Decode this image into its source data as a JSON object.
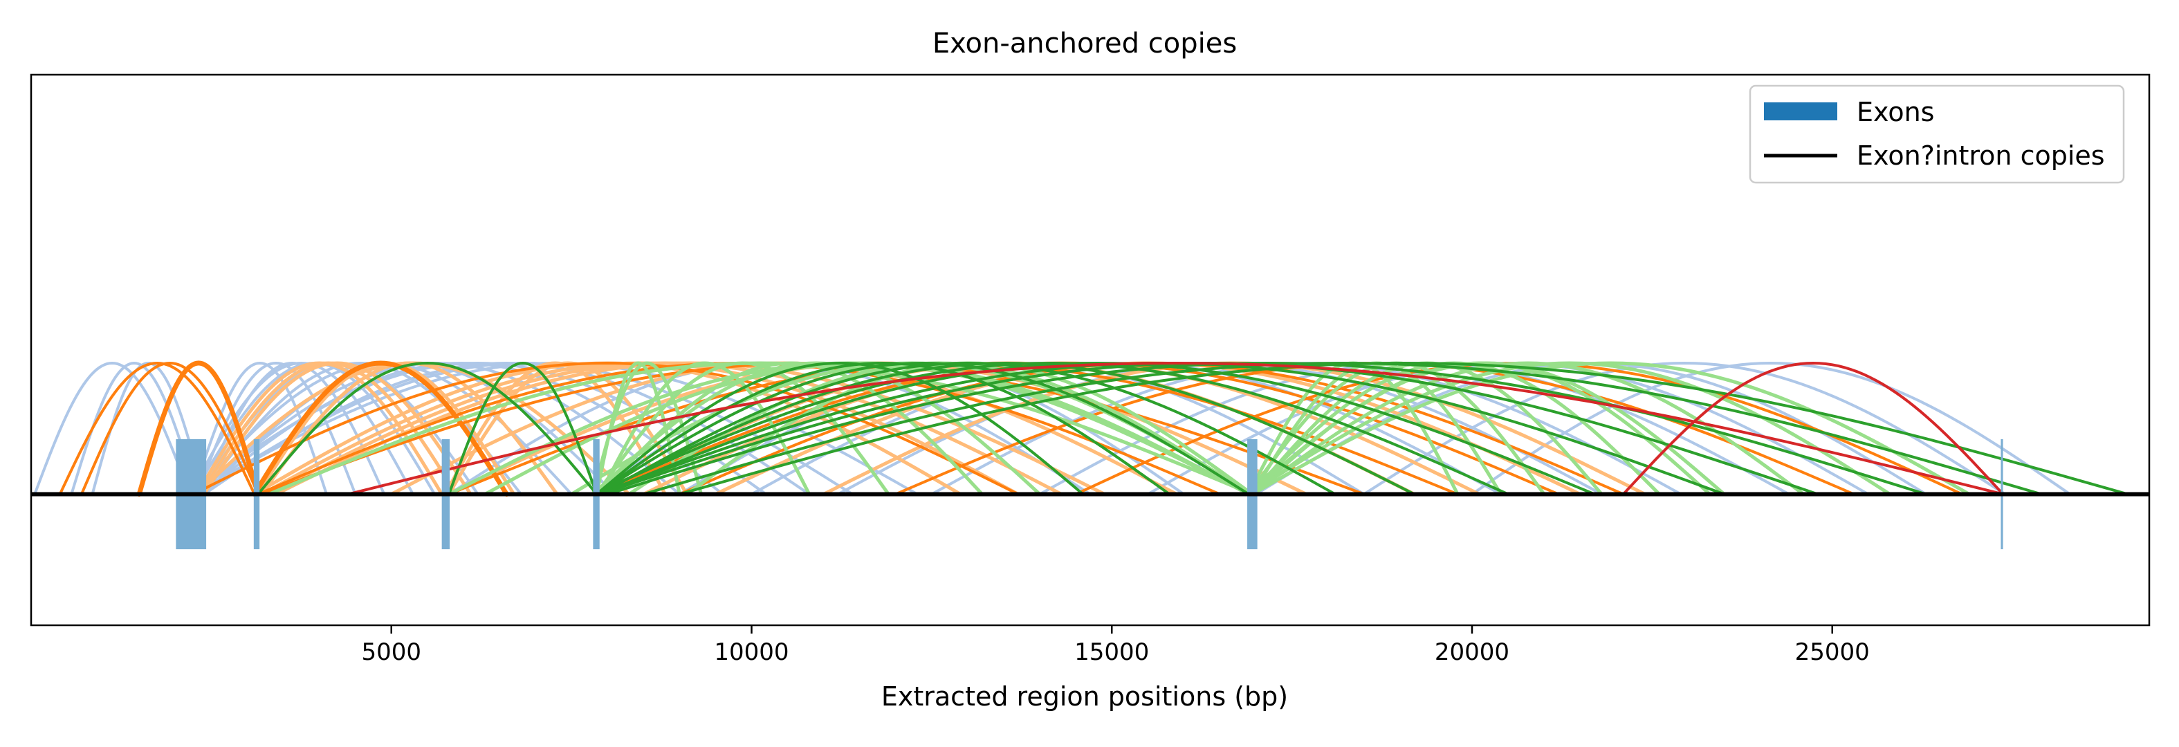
{
  "chart_data": {
    "type": "line",
    "title": "Exon-anchored copies",
    "xlabel": "Extracted region positions (bp)",
    "ylabel": "",
    "xlim": [
      0,
      29400
    ],
    "ylim": [
      -1.0,
      3.2
    ],
    "xticks": [
      5000,
      10000,
      15000,
      20000,
      25000
    ],
    "xtick_labels": [
      "5000",
      "10000",
      "15000",
      "20000",
      "25000"
    ],
    "yticks_visible": false,
    "grid": false,
    "legend_position": "top-right",
    "legend": [
      {
        "label": "Exons",
        "marker": "bar",
        "color": "#1f77b4"
      },
      {
        "label": "Exon?intron copies",
        "marker": "line",
        "color": "#000000"
      }
    ],
    "baseline": {
      "y": 0,
      "color": "#000000"
    },
    "exons": [
      {
        "start": 2010,
        "end": 2430,
        "height": 0.42,
        "depth": 0.42
      },
      {
        "start": 3090,
        "end": 3170,
        "height": 0.42,
        "depth": 0.42
      },
      {
        "start": 5700,
        "end": 5810,
        "height": 0.42,
        "depth": 0.42
      },
      {
        "start": 7800,
        "end": 7890,
        "height": 0.42,
        "depth": 0.42
      },
      {
        "start": 16880,
        "end": 17020,
        "height": 0.42,
        "depth": 0.42
      },
      {
        "start": 27340,
        "end": 27370,
        "height": 0.42,
        "depth": 0.42
      }
    ],
    "exon_color": "#7aaed3",
    "arc_peak": 1.0,
    "series": [
      {
        "color": "#aec7e8",
        "width": 4,
        "arcs": [
          [
            50,
            2200
          ],
          [
            560,
            2300
          ],
          [
            850,
            2400
          ],
          [
            2250,
            4100
          ],
          [
            2300,
            4500
          ],
          [
            2350,
            4900
          ],
          [
            2200,
            5300
          ],
          [
            2250,
            5600
          ],
          [
            2300,
            6200
          ],
          [
            2350,
            6800
          ],
          [
            2250,
            7500
          ],
          [
            2400,
            8100
          ],
          [
            2300,
            9000
          ],
          [
            2350,
            9600
          ],
          [
            2200,
            10200
          ],
          [
            2400,
            10800
          ],
          [
            2300,
            11400
          ],
          [
            2250,
            12300
          ],
          [
            5800,
            14700
          ],
          [
            7800,
            16000
          ],
          [
            9000,
            18500
          ],
          [
            10000,
            20400
          ],
          [
            11200,
            21800
          ],
          [
            12500,
            22900
          ],
          [
            14000,
            24400
          ],
          [
            15500,
            25500
          ],
          [
            17000,
            26300
          ],
          [
            18500,
            27400
          ],
          [
            20000,
            28300
          ]
        ]
      },
      {
        "color": "#ffbb78",
        "width": 5,
        "arcs": [
          [
            2300,
            5700
          ],
          [
            2350,
            5900
          ],
          [
            2400,
            6100
          ],
          [
            3150,
            6700
          ],
          [
            3200,
            7300
          ],
          [
            5750,
            8800
          ],
          [
            5800,
            9100
          ],
          [
            2300,
            8300
          ],
          [
            3100,
            12900
          ],
          [
            3200,
            13700
          ],
          [
            3300,
            14300
          ],
          [
            3400,
            14900
          ],
          [
            5000,
            15900
          ],
          [
            5800,
            17700
          ],
          [
            7900,
            19200
          ],
          [
            8500,
            20100
          ],
          [
            9500,
            21500
          ],
          [
            11000,
            22400
          ]
        ]
      },
      {
        "color": "#ff7f0e",
        "width": 4,
        "arcs": [
          [
            400,
            3100
          ],
          [
            700,
            3150
          ],
          [
            2250,
            13700
          ],
          [
            3150,
            16500
          ],
          [
            3200,
            18500
          ],
          [
            5800,
            19800
          ],
          [
            7850,
            21200
          ],
          [
            9000,
            22100
          ],
          [
            12000,
            25300
          ],
          [
            14500,
            26800
          ]
        ]
      },
      {
        "color": "#ff7f0e",
        "width": 7,
        "arcs": [
          [
            1500,
            3150
          ],
          [
            3100,
            6600
          ]
        ]
      },
      {
        "color": "#98df8a",
        "width": 5,
        "arcs": [
          [
            7850,
            9000
          ],
          [
            7800,
            9300
          ],
          [
            7900,
            10800
          ],
          [
            7850,
            11900
          ],
          [
            7900,
            13200
          ],
          [
            7800,
            14000
          ],
          [
            16900,
            19800
          ],
          [
            16950,
            20400
          ],
          [
            16900,
            21000
          ],
          [
            16950,
            21800
          ],
          [
            16900,
            22600
          ],
          [
            16950,
            23300
          ],
          [
            16900,
            23500
          ],
          [
            16950,
            24600
          ],
          [
            16900,
            25800
          ],
          [
            16950,
            26900
          ],
          [
            3300,
            16950
          ],
          [
            5800,
            16900
          ],
          [
            6300,
            16900
          ],
          [
            7500,
            16950
          ],
          [
            8300,
            16900
          ],
          [
            9100,
            16950
          ]
        ]
      },
      {
        "color": "#2ca02c",
        "width": 4,
        "arcs": [
          [
            3150,
            7850
          ],
          [
            5800,
            7850
          ],
          [
            7850,
            14600
          ],
          [
            7850,
            15800
          ],
          [
            7850,
            16900
          ],
          [
            7900,
            18100
          ],
          [
            7850,
            19200
          ],
          [
            7800,
            20500
          ],
          [
            7900,
            21700
          ],
          [
            7850,
            23500
          ],
          [
            7900,
            24800
          ],
          [
            8000,
            26300
          ],
          [
            8500,
            27900
          ],
          [
            9000,
            29100
          ]
        ]
      },
      {
        "color": "#d62728",
        "width": 4,
        "arcs": [
          [
            4400,
            27370
          ],
          [
            22100,
            27370
          ]
        ]
      }
    ]
  }
}
